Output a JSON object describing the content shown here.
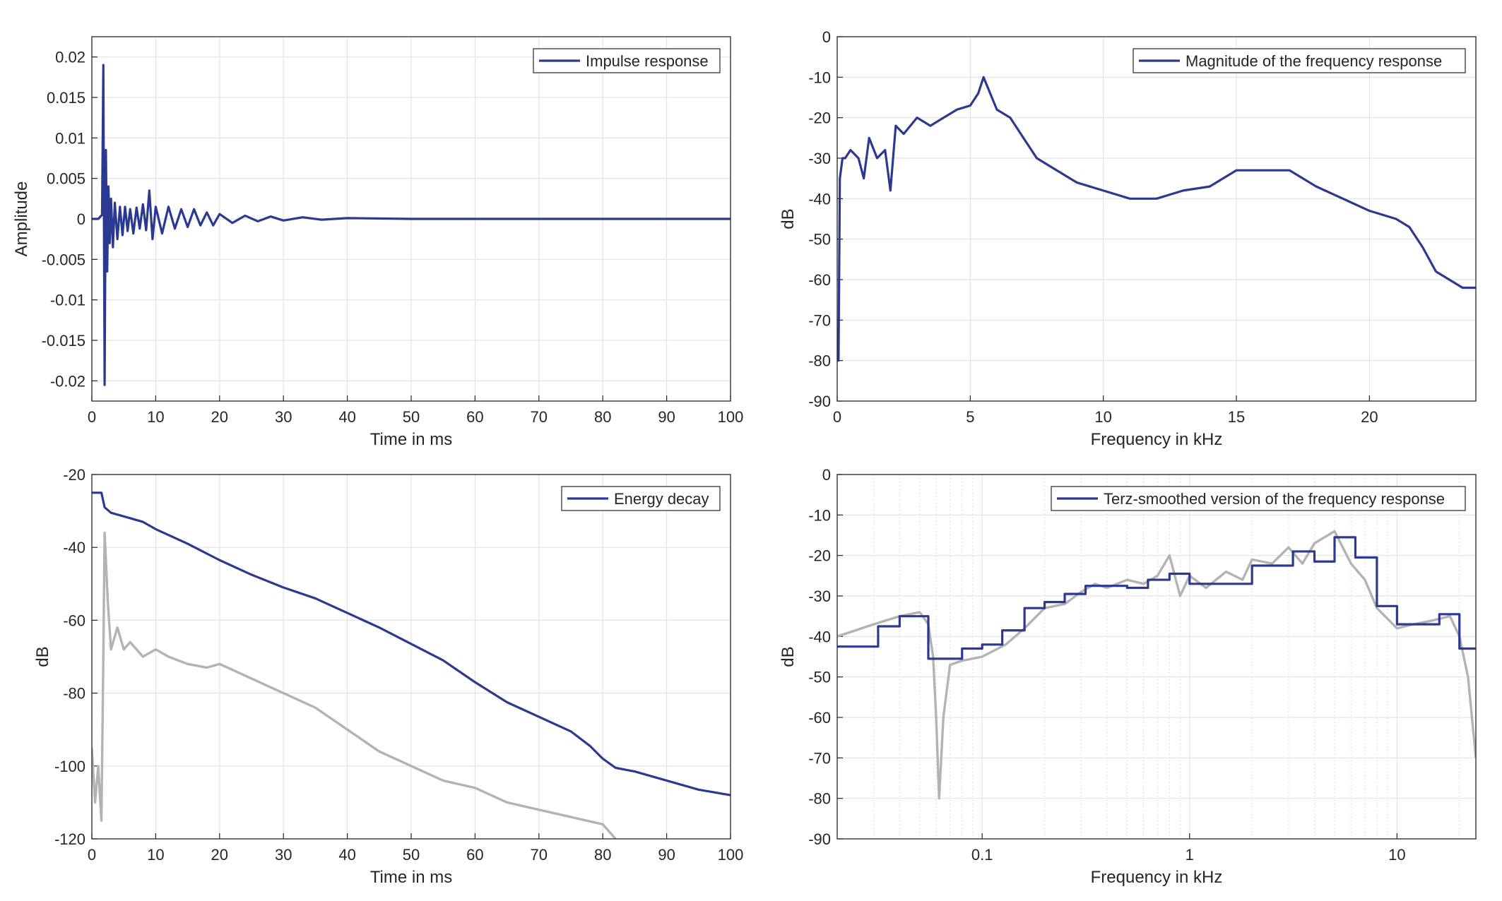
{
  "colors": {
    "primary": "#2b3990",
    "secondary": "#b3b3b3",
    "grid": "#e3e3e3",
    "axis": "#262626"
  },
  "chart_data": [
    {
      "type": "line",
      "xlabel": "Time in ms",
      "ylabel": "Amplitude",
      "xlim": [
        0,
        100
      ],
      "ylim": [
        -0.0225,
        0.0225
      ],
      "xticks": [
        0,
        10,
        20,
        30,
        40,
        50,
        60,
        70,
        80,
        90,
        100
      ],
      "yticks": [
        -0.02,
        -0.015,
        -0.01,
        -0.005,
        0,
        0.005,
        0.01,
        0.015,
        0.02
      ],
      "ytick_labels": [
        "-0.02",
        "-0.015",
        "-0.01",
        "-0.005",
        "0",
        "0.005",
        "0.01",
        "0.015",
        "0.02"
      ],
      "grid": true,
      "legend_position": "top-right",
      "series": [
        {
          "name": "Impulse response",
          "color": "#2b3990",
          "x": [
            0,
            1.0,
            1.6,
            1.8,
            2.0,
            2.2,
            2.4,
            2.6,
            2.8,
            3.0,
            3.3,
            3.6,
            4.0,
            4.4,
            4.8,
            5.2,
            5.6,
            6.0,
            6.5,
            7.0,
            7.5,
            8.0,
            8.5,
            9.0,
            9.5,
            10.0,
            11,
            12,
            13,
            14,
            15,
            16,
            17,
            18,
            19,
            20,
            22,
            24,
            26,
            28,
            30,
            33,
            36,
            40,
            50,
            100
          ],
          "y": [
            0,
            0,
            0.0005,
            0.019,
            -0.0205,
            0.0085,
            -0.0065,
            0.004,
            -0.003,
            0.0025,
            -0.0035,
            0.002,
            -0.0025,
            0.0015,
            -0.002,
            0.0015,
            -0.0015,
            0.0012,
            -0.0018,
            0.0014,
            -0.0012,
            0.0018,
            -0.0014,
            0.0035,
            -0.0025,
            0.0015,
            -0.0018,
            0.0015,
            -0.0012,
            0.0012,
            -0.001,
            0.0012,
            -0.0008,
            0.0008,
            -0.0008,
            0.0006,
            -0.0005,
            0.0004,
            -0.0003,
            0.0003,
            -0.0002,
            0.0002,
            -0.0001,
            0.0001,
            0,
            0
          ]
        }
      ]
    },
    {
      "type": "line",
      "xlabel": "Frequency in kHz",
      "ylabel": "dB",
      "xlim": [
        0,
        24
      ],
      "ylim": [
        -90,
        0
      ],
      "xticks": [
        0,
        5,
        10,
        15,
        20
      ],
      "yticks": [
        -90,
        -80,
        -70,
        -60,
        -50,
        -40,
        -30,
        -20,
        -10,
        0
      ],
      "grid": true,
      "legend_position": "top-right",
      "series": [
        {
          "name": "Magnitude of the frequency response",
          "color": "#2b3990",
          "x": [
            0,
            0.05,
            0.1,
            0.2,
            0.3,
            0.5,
            0.8,
            1.0,
            1.2,
            1.5,
            1.8,
            2.0,
            2.2,
            2.5,
            3.0,
            3.5,
            4.0,
            4.5,
            5.0,
            5.3,
            5.5,
            6.0,
            6.5,
            7.0,
            7.5,
            8.0,
            9.0,
            10.0,
            11.0,
            12.0,
            13.0,
            14.0,
            15.0,
            16.0,
            17.0,
            18.0,
            19.0,
            20.0,
            21.0,
            21.5,
            22.0,
            22.5,
            23.0,
            23.5,
            24.0
          ],
          "y": [
            -72,
            -80,
            -35,
            -30,
            -30,
            -28,
            -30,
            -35,
            -25,
            -30,
            -28,
            -38,
            -22,
            -24,
            -20,
            -22,
            -20,
            -18,
            -17,
            -14,
            -10,
            -18,
            -20,
            -25,
            -30,
            -32,
            -36,
            -38,
            -40,
            -40,
            -38,
            -37,
            -33,
            -33,
            -33,
            -37,
            -40,
            -43,
            -45,
            -47,
            -52,
            -58,
            -60,
            -62,
            -62
          ]
        }
      ]
    },
    {
      "type": "line",
      "xlabel": "Time in ms",
      "ylabel": "dB",
      "xlim": [
        0,
        100
      ],
      "ylim": [
        -120,
        -20
      ],
      "xticks": [
        0,
        10,
        20,
        30,
        40,
        50,
        60,
        70,
        80,
        90,
        100
      ],
      "yticks": [
        -120,
        -100,
        -80,
        -60,
        -40,
        -20
      ],
      "grid": true,
      "legend_position": "top-right",
      "series": [
        {
          "name": "Energy decay",
          "color": "#2b3990",
          "x": [
            0,
            1.5,
            2,
            3,
            5,
            8,
            10,
            15,
            20,
            25,
            30,
            35,
            40,
            45,
            50,
            55,
            60,
            65,
            70,
            75,
            78,
            80,
            82,
            85,
            90,
            95,
            100
          ],
          "y": [
            -25,
            -25,
            -29,
            -30.5,
            -31.5,
            -33,
            -35,
            -39,
            -43.5,
            -47.5,
            -51,
            -54,
            -58,
            -62,
            -66.5,
            -71,
            -77,
            -82.5,
            -86.5,
            -90.5,
            -94.5,
            -98,
            -100.5,
            -101.5,
            -104,
            -106.5,
            -108
          ]
        },
        {
          "color": "#b3b3b3",
          "x": [
            0,
            0.5,
            1.0,
            1.5,
            1.8,
            2.0,
            2.5,
            3,
            4,
            5,
            6,
            8,
            10,
            12,
            15,
            18,
            20,
            25,
            30,
            35,
            40,
            45,
            50,
            55,
            60,
            65,
            70,
            75,
            80,
            82
          ],
          "y": [
            -95,
            -110,
            -100,
            -115,
            -70,
            -36,
            -55,
            -68,
            -62,
            -68,
            -66,
            -70,
            -68,
            -70,
            -72,
            -73,
            -72,
            -76,
            -80,
            -84,
            -90,
            -96,
            -100,
            -104,
            -106,
            -110,
            -112,
            -114,
            -116,
            -120
          ]
        }
      ]
    },
    {
      "type": "line",
      "xlabel": "Frequency in kHz",
      "ylabel": "dB",
      "x_scale": "log",
      "xlim": [
        0.02,
        24
      ],
      "ylim": [
        -90,
        0
      ],
      "xticks": [
        0.1,
        1,
        10
      ],
      "xtick_labels": [
        "0.1",
        "1",
        "10"
      ],
      "yticks": [
        -90,
        -80,
        -70,
        -60,
        -50,
        -40,
        -30,
        -20,
        -10,
        0
      ],
      "grid": true,
      "legend_position": "top-right",
      "series": [
        {
          "name": "Terz-smoothed version of the frequency response",
          "color": "#2b3990",
          "x": [
            0.02,
            0.0315,
            0.0315,
            0.04,
            0.04,
            0.055,
            0.055,
            0.063,
            0.063,
            0.08,
            0.08,
            0.1,
            0.1,
            0.125,
            0.125,
            0.16,
            0.16,
            0.2,
            0.2,
            0.25,
            0.25,
            0.315,
            0.315,
            0.4,
            0.4,
            0.5,
            0.5,
            0.63,
            0.63,
            0.8,
            0.8,
            1.0,
            1.0,
            1.25,
            1.25,
            1.6,
            1.6,
            2.0,
            2.0,
            2.5,
            2.5,
            3.15,
            3.15,
            4.0,
            4.0,
            5.0,
            5.0,
            6.3,
            6.3,
            8.0,
            8.0,
            10.0,
            10.0,
            12.5,
            12.5,
            16.0,
            16.0,
            20.0,
            20.0,
            24.0
          ],
          "y": [
            -42.5,
            -42.5,
            -37.5,
            -37.5,
            -35,
            -35,
            -45.5,
            -45.5,
            -45.5,
            -45.5,
            -43,
            -43,
            -42,
            -42,
            -38.5,
            -38.5,
            -33,
            -33,
            -31.5,
            -31.5,
            -29.5,
            -29.5,
            -27.5,
            -27.5,
            -27.5,
            -27.5,
            -28,
            -28,
            -26,
            -26,
            -24.5,
            -24.5,
            -27,
            -27,
            -27,
            -27,
            -27,
            -27,
            -22.5,
            -22.5,
            -22.5,
            -22.5,
            -19,
            -19,
            -21.5,
            -21.5,
            -15.5,
            -15.5,
            -20.5,
            -20.5,
            -32.5,
            -32.5,
            -37,
            -37,
            -37,
            -37,
            -34.5,
            -34.5,
            -43,
            -43
          ]
        },
        {
          "color": "#b3b3b3",
          "x": [
            0.02,
            0.03,
            0.04,
            0.05,
            0.055,
            0.058,
            0.06,
            0.062,
            0.065,
            0.07,
            0.08,
            0.1,
            0.13,
            0.16,
            0.2,
            0.25,
            0.3,
            0.35,
            0.4,
            0.5,
            0.6,
            0.7,
            0.8,
            0.9,
            1.0,
            1.2,
            1.5,
            1.8,
            2.0,
            2.5,
            3.0,
            3.5,
            4.0,
            5.0,
            6.0,
            7.0,
            8.0,
            10.0,
            12.0,
            15.0,
            18.0,
            20.0,
            22.0,
            24.0
          ],
          "y": [
            -40,
            -37,
            -35,
            -34,
            -37,
            -45,
            -60,
            -80,
            -60,
            -47,
            -46,
            -45,
            -42,
            -38,
            -33,
            -32,
            -29,
            -27,
            -28,
            -26,
            -27,
            -25,
            -20,
            -30,
            -25,
            -28,
            -24,
            -26,
            -21,
            -22,
            -18,
            -22,
            -17,
            -14,
            -22,
            -26,
            -33,
            -38,
            -37,
            -36,
            -35,
            -40,
            -50,
            -70
          ]
        }
      ]
    }
  ]
}
